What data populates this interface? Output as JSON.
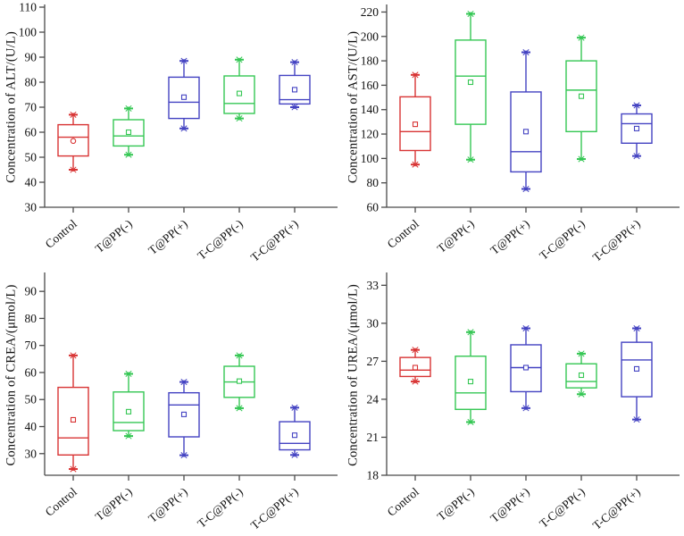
{
  "figure": {
    "background": "#ffffff",
    "axis_color": "#4a4a4a",
    "text_color": "#111111",
    "group_colors": {
      "red": "#d83434",
      "green": "#35c754",
      "blue": "#4443c2"
    },
    "categories": [
      "Control",
      "T@PP(-)",
      "T@PP(+)",
      "T-C@PP(-)",
      "T-C@PP(+)"
    ]
  },
  "chart_data": [
    {
      "type": "box",
      "title": "",
      "xlabel": "",
      "ylabel": "Concentration of ALT/(U/L)",
      "ylim": [
        30,
        110
      ],
      "yticks": [
        30,
        40,
        50,
        60,
        70,
        80,
        90,
        100,
        110
      ],
      "grid": false,
      "legend": "none",
      "boxes": [
        {
          "label": "Control",
          "color": "#d83434",
          "whislo": 45.0,
          "q1": 50.5,
          "med": 58.0,
          "q3": 63.0,
          "whishi": 67.0,
          "mean": 56.5,
          "marker": "circle"
        },
        {
          "label": "T@PP(-)",
          "color": "#35c754",
          "whislo": 51.0,
          "q1": 54.5,
          "med": 58.5,
          "q3": 65.0,
          "whishi": 69.5,
          "mean": 60.0,
          "marker": "square"
        },
        {
          "label": "T@PP(+)",
          "color": "#4443c2",
          "whislo": 61.5,
          "q1": 65.5,
          "med": 72.0,
          "q3": 82.0,
          "whishi": 88.5,
          "mean": 74.0,
          "marker": "square"
        },
        {
          "label": "T-C@PP(-)",
          "color": "#35c754",
          "whislo": 65.5,
          "q1": 67.5,
          "med": 71.5,
          "q3": 82.5,
          "whishi": 89.0,
          "mean": 75.5,
          "marker": "square"
        },
        {
          "label": "T-C@PP(+)",
          "color": "#4443c2",
          "whislo": 70.0,
          "q1": 71.3,
          "med": 73.0,
          "q3": 82.7,
          "whishi": 88.0,
          "mean": 77.0,
          "marker": "square"
        }
      ]
    },
    {
      "type": "box",
      "title": "",
      "xlabel": "",
      "ylabel": "Concentration of AST/(U/L)",
      "ylim": [
        60,
        224
      ],
      "yticks": [
        60,
        80,
        100,
        120,
        140,
        160,
        180,
        200,
        220
      ],
      "grid": false,
      "legend": "none",
      "boxes": [
        {
          "label": "Control",
          "color": "#d83434",
          "whislo": 95.0,
          "q1": 106.5,
          "med": 122.0,
          "q3": 150.5,
          "whishi": 168.5,
          "mean": 128.0,
          "marker": "square"
        },
        {
          "label": "T@PP(-)",
          "color": "#35c754",
          "whislo": 99.0,
          "q1": 128.0,
          "med": 167.5,
          "q3": 197.0,
          "whishi": 218.5,
          "mean": 162.5,
          "marker": "square"
        },
        {
          "label": "T@PP(+)",
          "color": "#4443c2",
          "whislo": 75.0,
          "q1": 89.0,
          "med": 105.5,
          "q3": 154.5,
          "whishi": 187.0,
          "mean": 122.0,
          "marker": "square"
        },
        {
          "label": "T-C@PP(-)",
          "color": "#35c754",
          "whislo": 99.5,
          "q1": 122.0,
          "med": 156.0,
          "q3": 180.0,
          "whishi": 199.0,
          "mean": 151.0,
          "marker": "square"
        },
        {
          "label": "T-C@PP(+)",
          "color": "#4443c2",
          "whislo": 102.0,
          "q1": 112.5,
          "med": 128.5,
          "q3": 136.5,
          "whishi": 143.5,
          "mean": 124.5,
          "marker": "square"
        }
      ]
    },
    {
      "type": "box",
      "title": "",
      "xlabel": "",
      "ylabel": "Concentration of CREA/(μmol/L)",
      "ylim": [
        22,
        96
      ],
      "yticks": [
        30,
        40,
        50,
        60,
        70,
        80,
        90
      ],
      "grid": false,
      "legend": "none",
      "boxes": [
        {
          "label": "Control",
          "color": "#d83434",
          "whislo": 24.3,
          "q1": 29.5,
          "med": 35.8,
          "q3": 54.5,
          "whishi": 66.3,
          "mean": 42.5,
          "marker": "square"
        },
        {
          "label": "T@PP(-)",
          "color": "#35c754",
          "whislo": 36.5,
          "q1": 38.5,
          "med": 41.5,
          "q3": 52.8,
          "whishi": 59.5,
          "mean": 45.5,
          "marker": "square"
        },
        {
          "label": "T@PP(+)",
          "color": "#4443c2",
          "whislo": 29.4,
          "q1": 36.2,
          "med": 48.0,
          "q3": 52.5,
          "whishi": 56.5,
          "mean": 44.5,
          "marker": "square"
        },
        {
          "label": "T-C@PP(-)",
          "color": "#35c754",
          "whislo": 46.8,
          "q1": 50.8,
          "med": 56.5,
          "q3": 62.3,
          "whishi": 66.3,
          "mean": 56.8,
          "marker": "square"
        },
        {
          "label": "T-C@PP(+)",
          "color": "#4443c2",
          "whislo": 29.5,
          "q1": 31.4,
          "med": 33.8,
          "q3": 41.8,
          "whishi": 47.0,
          "mean": 36.8,
          "marker": "square"
        }
      ]
    },
    {
      "type": "box",
      "title": "",
      "xlabel": "",
      "ylabel": "Concentration of UREA/(μmol/L)",
      "ylim": [
        18,
        33.8
      ],
      "yticks": [
        18,
        21,
        24,
        27,
        30,
        33
      ],
      "grid": false,
      "legend": "none",
      "boxes": [
        {
          "label": "Control",
          "color": "#d83434",
          "whislo": 25.4,
          "q1": 25.8,
          "med": 26.3,
          "q3": 27.3,
          "whishi": 27.9,
          "mean": 26.5,
          "marker": "square"
        },
        {
          "label": "T@PP(-)",
          "color": "#35c754",
          "whislo": 22.2,
          "q1": 23.2,
          "med": 24.5,
          "q3": 27.4,
          "whishi": 29.3,
          "mean": 25.4,
          "marker": "square"
        },
        {
          "label": "T@PP(+)",
          "color": "#4443c2",
          "whislo": 23.3,
          "q1": 24.6,
          "med": 26.5,
          "q3": 28.3,
          "whishi": 29.6,
          "mean": 26.5,
          "marker": "square"
        },
        {
          "label": "T-C@PP(-)",
          "color": "#35c754",
          "whislo": 24.4,
          "q1": 24.9,
          "med": 25.4,
          "q3": 26.8,
          "whishi": 27.6,
          "mean": 25.9,
          "marker": "square"
        },
        {
          "label": "T-C@PP(+)",
          "color": "#4443c2",
          "whislo": 22.4,
          "q1": 24.2,
          "med": 27.1,
          "q3": 28.5,
          "whishi": 29.6,
          "mean": 26.4,
          "marker": "square"
        }
      ]
    }
  ]
}
